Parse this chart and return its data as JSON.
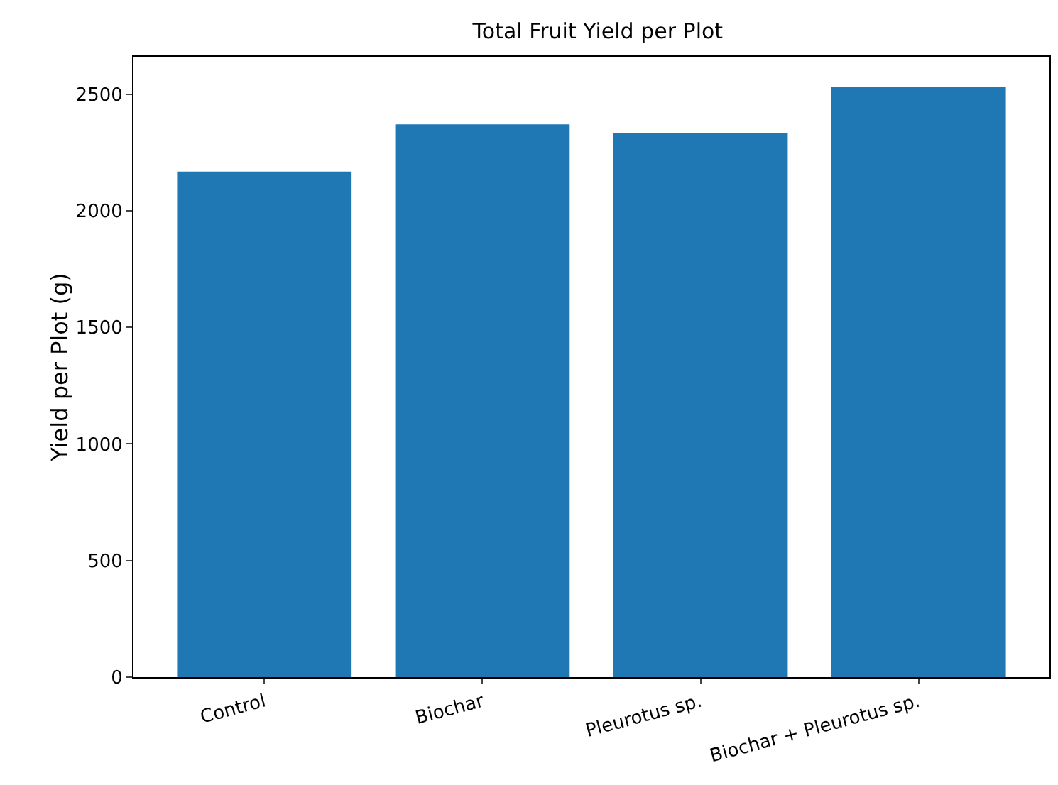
{
  "chart_data": {
    "type": "bar",
    "title": "Total Fruit Yield per Plot",
    "ylabel": "Yield per Plot (g)",
    "categories": [
      "Control",
      "Biochar",
      "Pleurotus sp.",
      "Biochar + Pleurotus sp."
    ],
    "values": [
      2168,
      2370,
      2332,
      2532
    ],
    "color": "#1f77b4",
    "ylim": [
      0,
      2660
    ],
    "yticks": [
      0,
      500,
      1000,
      1500,
      2000,
      2500
    ],
    "grid": false
  }
}
